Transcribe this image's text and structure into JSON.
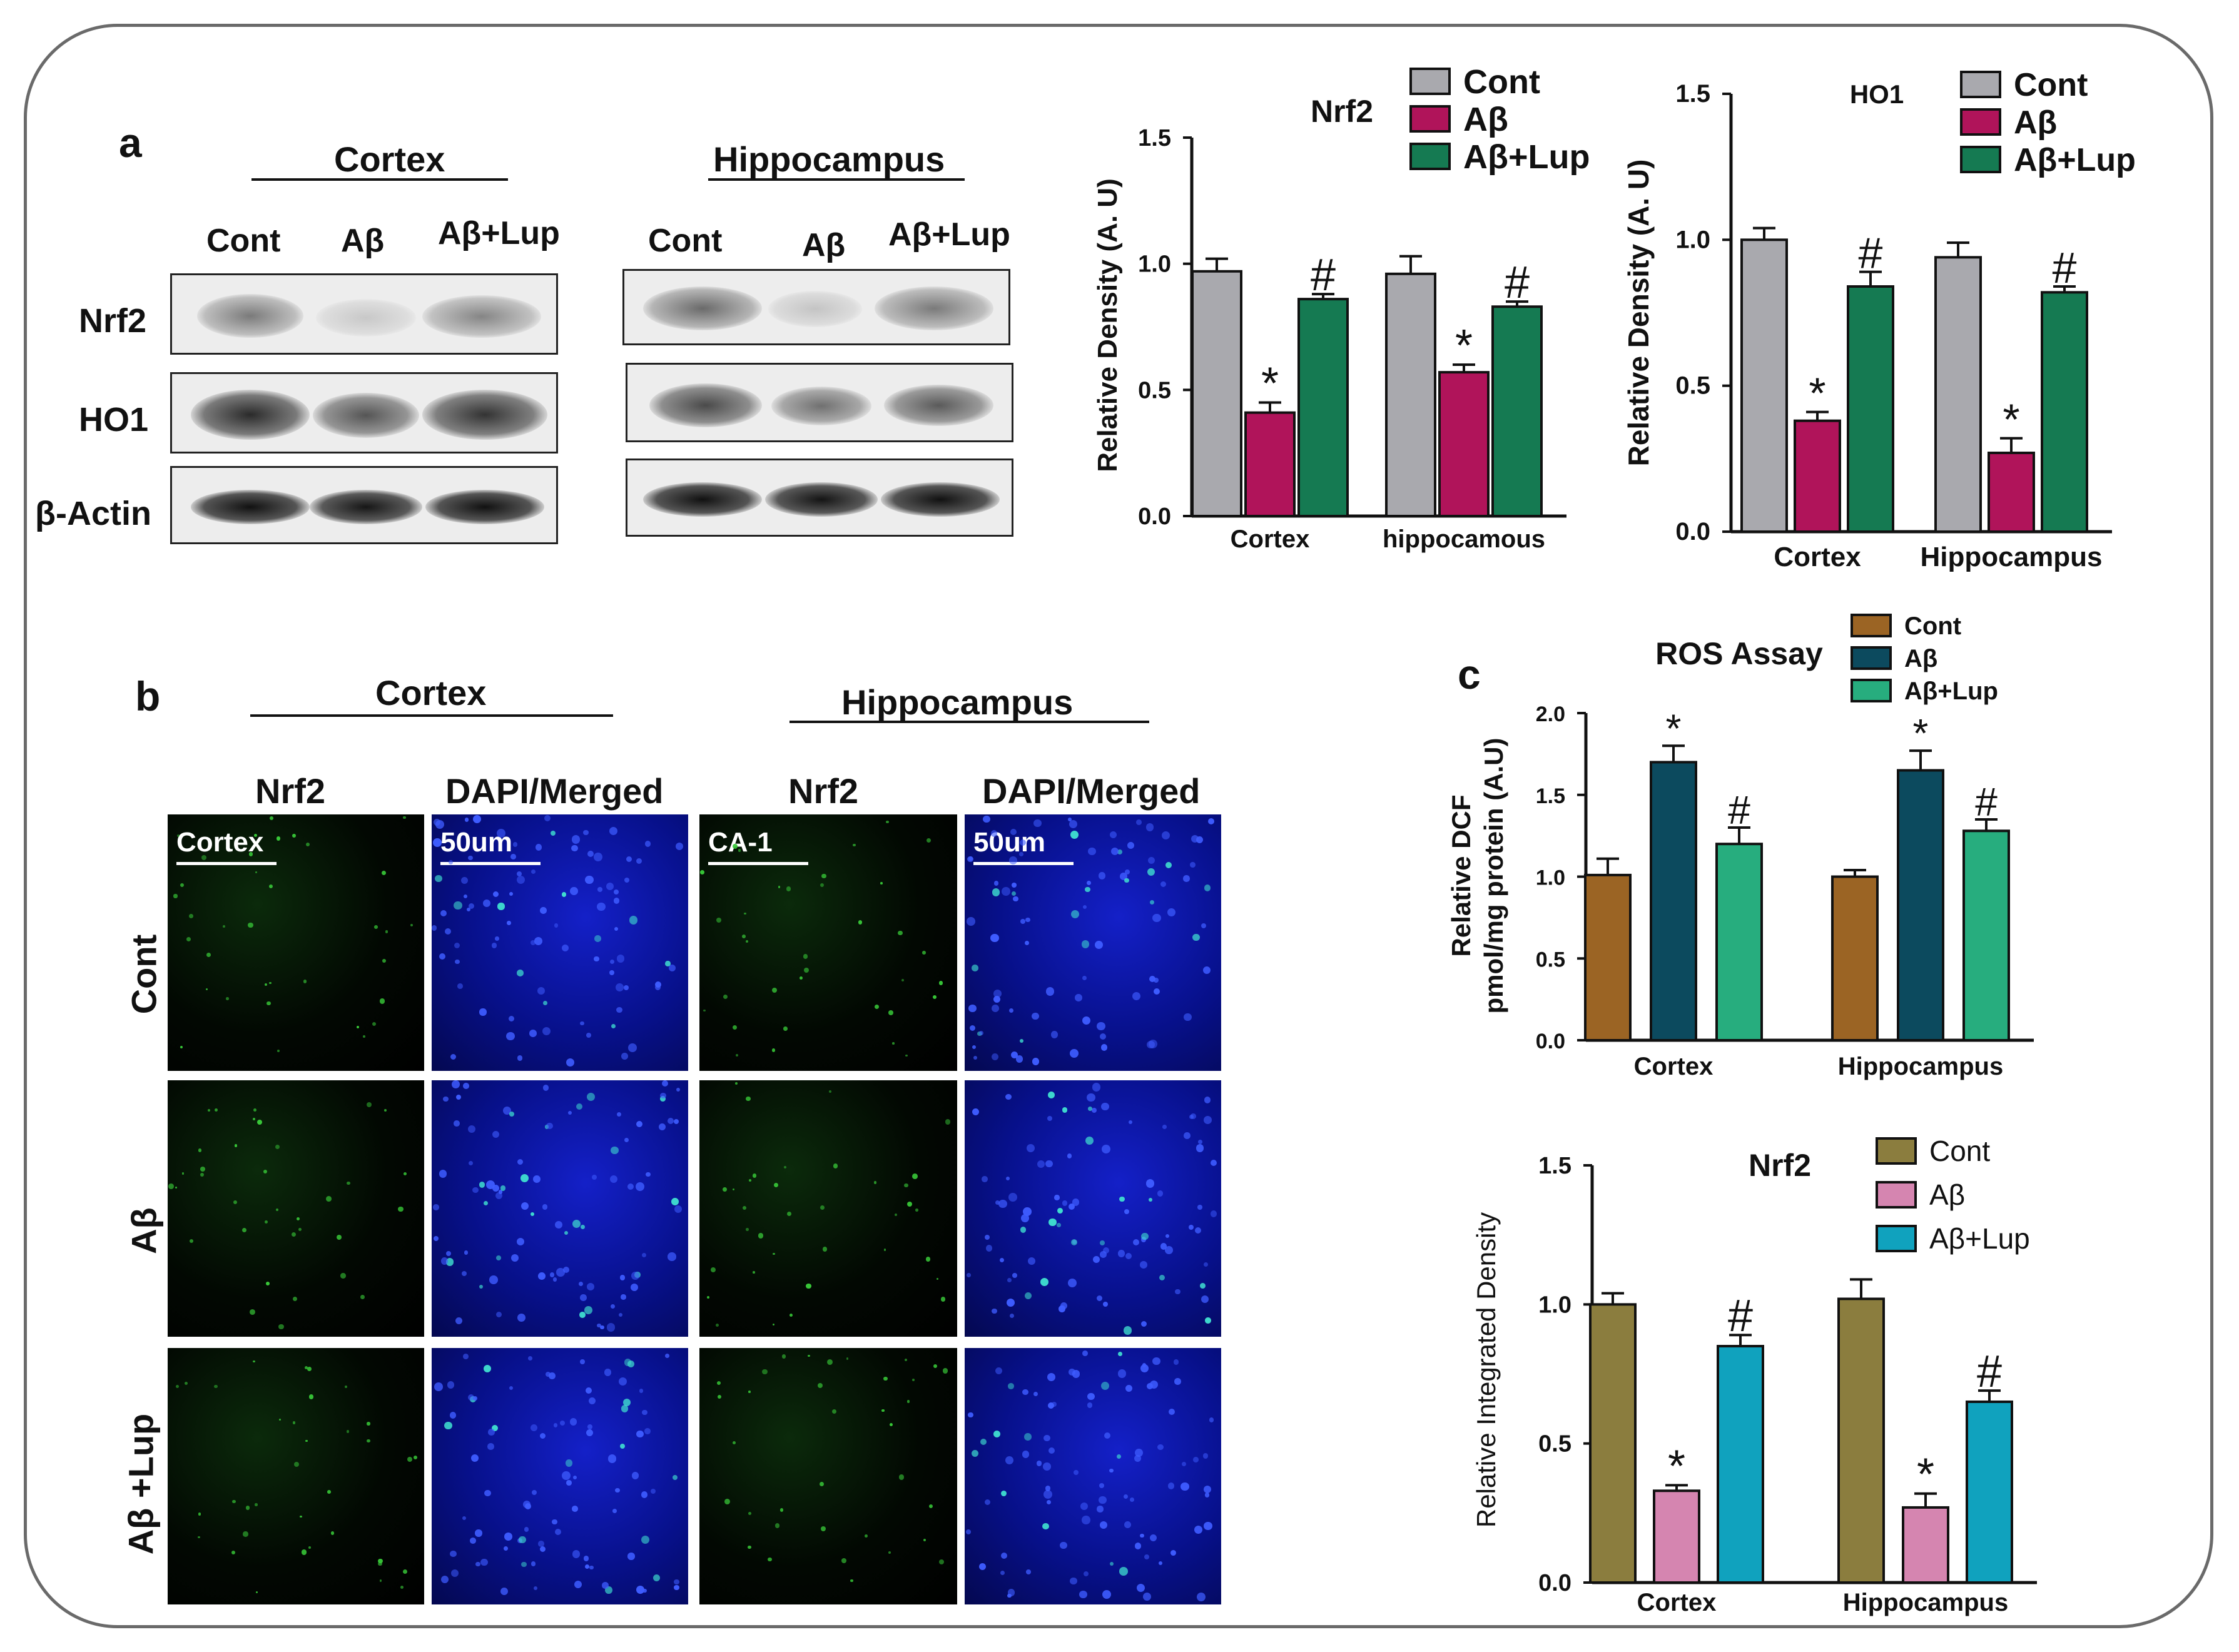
{
  "panel_a": {
    "letter": "a",
    "regions": [
      "Cortex",
      "Hippocampus"
    ],
    "lanes": [
      "Cont",
      "Aβ",
      "Aβ+Lup"
    ],
    "proteins": [
      "Nrf2",
      "HO1",
      "β-Actin"
    ]
  },
  "panel_b": {
    "letter": "b",
    "regions": [
      "Cortex",
      "Hippocampus"
    ],
    "columns": [
      "Nrf2",
      "DAPI/Merged",
      "Nrf2",
      "DAPI/Merged"
    ],
    "rows": [
      "Cont",
      "Aβ",
      "Aβ +Lup"
    ],
    "image_tags": [
      "Cortex",
      "50um",
      "CA-1",
      "50um"
    ]
  },
  "panel_c": {
    "letter": "c"
  },
  "colors": {
    "chart1": [
      "#a9a9ae",
      "#b0145a",
      "#157a52"
    ],
    "chart2": [
      "#a9a9ae",
      "#b0145a",
      "#157a52"
    ],
    "chart3": [
      "#9b6424",
      "#0c4a5e",
      "#27ad7e"
    ],
    "chart4": [
      "#8b7d3e",
      "#d585b0",
      "#10a2be"
    ]
  },
  "chart_data": [
    {
      "type": "bar",
      "title": "Nrf2",
      "ylabel": "Relative Density (A. U)",
      "categories": [
        "Cortex",
        "hippocamous"
      ],
      "ylim": [
        0,
        1.5
      ],
      "yticks": [
        "0.0",
        "0.5",
        "1.0",
        "1.5"
      ],
      "series": [
        {
          "name": "Cont",
          "values": [
            0.97,
            0.96
          ],
          "errors": [
            0.05,
            0.07
          ],
          "marks": [
            "",
            ""
          ]
        },
        {
          "name": "Aβ",
          "values": [
            0.41,
            0.57
          ],
          "errors": [
            0.04,
            0.03
          ],
          "marks": [
            "*",
            "*"
          ]
        },
        {
          "name": "Aβ+Lup",
          "values": [
            0.86,
            0.83
          ],
          "errors": [
            0.02,
            0.02
          ],
          "marks": [
            "#",
            "#"
          ]
        }
      ],
      "legend": "top-right"
    },
    {
      "type": "bar",
      "title": "HO1",
      "ylabel": "Relative Density (A. U)",
      "categories": [
        "Cortex",
        "Hippocampus"
      ],
      "ylim": [
        0,
        1.5
      ],
      "yticks": [
        "0.0",
        "0.5",
        "1.0",
        "1.5"
      ],
      "series": [
        {
          "name": "Cont",
          "values": [
            1.0,
            0.94
          ],
          "errors": [
            0.04,
            0.05
          ],
          "marks": [
            "",
            ""
          ]
        },
        {
          "name": "Aβ",
          "values": [
            0.38,
            0.27
          ],
          "errors": [
            0.03,
            0.05
          ],
          "marks": [
            "*",
            "*"
          ]
        },
        {
          "name": "Aβ+Lup",
          "values": [
            0.84,
            0.82
          ],
          "errors": [
            0.05,
            0.02
          ],
          "marks": [
            "#",
            "#"
          ]
        }
      ],
      "legend": "top-right"
    },
    {
      "type": "bar",
      "title": "ROS Assay",
      "ylabel": "Relative DCF pmol/mg protein (A.U)",
      "categories": [
        "Cortex",
        "Hippocampus"
      ],
      "ylim": [
        0,
        2.0
      ],
      "yticks": [
        "0.0",
        "0.5",
        "1.0",
        "1.5",
        "2.0"
      ],
      "series": [
        {
          "name": "Cont",
          "values": [
            1.01,
            1.0
          ],
          "errors": [
            0.1,
            0.04
          ],
          "marks": [
            "",
            ""
          ]
        },
        {
          "name": "Aβ",
          "values": [
            1.7,
            1.65
          ],
          "errors": [
            0.1,
            0.12
          ],
          "marks": [
            "*",
            "*"
          ]
        },
        {
          "name": "Aβ+Lup",
          "values": [
            1.2,
            1.28
          ],
          "errors": [
            0.1,
            0.07
          ],
          "marks": [
            "#",
            "#"
          ]
        }
      ],
      "legend": "top-right"
    },
    {
      "type": "bar",
      "title": "Nrf2",
      "ylabel": "Relative Integrated Density",
      "categories": [
        "Cortex",
        "Hippocampus"
      ],
      "ylim": [
        0,
        1.5
      ],
      "yticks": [
        "0.0",
        "0.5",
        "1.0",
        "1.5"
      ],
      "series": [
        {
          "name": "Cont",
          "values": [
            1.0,
            1.02
          ],
          "errors": [
            0.04,
            0.07
          ],
          "marks": [
            "",
            ""
          ]
        },
        {
          "name": "Aβ",
          "values": [
            0.33,
            0.27
          ],
          "errors": [
            0.02,
            0.05
          ],
          "marks": [
            "*",
            "*"
          ]
        },
        {
          "name": "Aβ+Lup",
          "values": [
            0.85,
            0.65
          ],
          "errors": [
            0.04,
            0.04
          ],
          "marks": [
            "#",
            "#"
          ]
        }
      ],
      "legend": "top-right"
    }
  ]
}
